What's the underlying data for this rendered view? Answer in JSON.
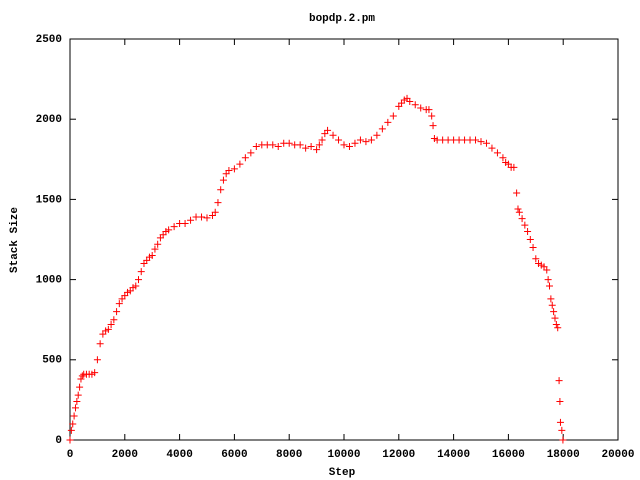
{
  "chart_data": {
    "type": "scatter",
    "title": "bopdp.2.pm",
    "x_label": "Step",
    "y_label": "Stack Size",
    "color": "#ff0000",
    "marker": "+",
    "x": [
      0,
      50,
      100,
      150,
      200,
      250,
      300,
      350,
      400,
      450,
      500,
      600,
      700,
      800,
      900,
      1000,
      1100,
      1200,
      1300,
      1400,
      1500,
      1600,
      1700,
      1800,
      1900,
      2000,
      2100,
      2200,
      2300,
      2400,
      2500,
      2600,
      2700,
      2800,
      2900,
      3000,
      3100,
      3200,
      3300,
      3400,
      3500,
      3600,
      3800,
      4000,
      4200,
      4400,
      4600,
      4800,
      5000,
      5200,
      5300,
      5400,
      5500,
      5600,
      5700,
      5800,
      6000,
      6200,
      6400,
      6600,
      6800,
      7000,
      7200,
      7400,
      7600,
      7800,
      8000,
      8200,
      8400,
      8600,
      8800,
      9000,
      9100,
      9200,
      9300,
      9400,
      9600,
      9800,
      10000,
      10200,
      10400,
      10600,
      10800,
      11000,
      11200,
      11400,
      11600,
      11800,
      12000,
      12100,
      12200,
      12300,
      12400,
      12600,
      12800,
      13000,
      13100,
      13200,
      13250,
      13300,
      13400,
      13600,
      13800,
      14000,
      14200,
      14400,
      14600,
      14800,
      15000,
      15200,
      15400,
      15600,
      15800,
      15900,
      16000,
      16100,
      16200,
      16300,
      16350,
      16400,
      16500,
      16600,
      16700,
      16800,
      16900,
      17000,
      17100,
      17200,
      17300,
      17400,
      17450,
      17500,
      17550,
      17600,
      17650,
      17700,
      17750,
      17800,
      17850,
      17880,
      17900,
      17950,
      17990
    ],
    "values": [
      0,
      60,
      100,
      150,
      200,
      240,
      280,
      330,
      380,
      400,
      410,
      410,
      410,
      410,
      420,
      500,
      600,
      660,
      680,
      690,
      720,
      750,
      800,
      850,
      880,
      900,
      920,
      930,
      950,
      960,
      1000,
      1050,
      1100,
      1120,
      1140,
      1150,
      1190,
      1220,
      1260,
      1280,
      1300,
      1310,
      1330,
      1350,
      1350,
      1370,
      1390,
      1390,
      1385,
      1400,
      1420,
      1480,
      1560,
      1620,
      1660,
      1680,
      1690,
      1720,
      1760,
      1790,
      1830,
      1840,
      1840,
      1840,
      1830,
      1850,
      1850,
      1840,
      1840,
      1820,
      1830,
      1810,
      1840,
      1870,
      1910,
      1930,
      1900,
      1870,
      1840,
      1830,
      1850,
      1870,
      1860,
      1870,
      1900,
      1940,
      1980,
      2020,
      2080,
      2100,
      2120,
      2130,
      2110,
      2090,
      2070,
      2060,
      2060,
      2020,
      1960,
      1880,
      1870,
      1870,
      1870,
      1870,
      1870,
      1870,
      1870,
      1870,
      1860,
      1850,
      1820,
      1790,
      1760,
      1730,
      1720,
      1700,
      1700,
      1540,
      1440,
      1420,
      1380,
      1340,
      1300,
      1250,
      1200,
      1130,
      1100,
      1090,
      1080,
      1060,
      1000,
      960,
      880,
      840,
      800,
      760,
      720,
      700,
      370,
      240,
      110,
      60,
      0
    ],
    "xlim": [
      0,
      20000
    ],
    "ylim": [
      0,
      2500
    ],
    "xticks": [
      0,
      2000,
      4000,
      6000,
      8000,
      10000,
      12000,
      14000,
      16000,
      18000,
      20000
    ],
    "yticks": [
      0,
      500,
      1000,
      1500,
      2000,
      2500
    ]
  }
}
